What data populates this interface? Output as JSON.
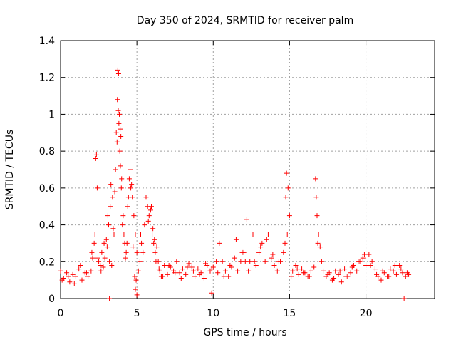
{
  "chart_data": {
    "type": "scatter",
    "title": "Day 350 of 2024, SRMTID for receiver palm",
    "xlabel": "GPS time / hours",
    "ylabel": "SRMTID / TECUs",
    "xlim": [
      0,
      24.5
    ],
    "ylim": [
      0,
      1.4
    ],
    "xticks": [
      0,
      5,
      10,
      15,
      20
    ],
    "xtick_labels": [
      "0",
      "5",
      "10",
      "15",
      "20"
    ],
    "yticks": [
      0,
      0.2,
      0.4,
      0.6,
      0.8,
      1.0,
      1.2,
      1.4
    ],
    "ytick_labels": [
      "0",
      "0.2",
      "0.4",
      "0.6",
      "0.8",
      "1",
      "1.2",
      "1.4"
    ],
    "grid": true,
    "marker": "+",
    "series": [
      {
        "name": "SRMTID",
        "color": "#ff0000",
        "x": [
          0.0,
          0.2,
          0.4,
          0.6,
          0.8,
          1.0,
          1.2,
          1.4,
          1.6,
          1.8,
          2.0,
          2.1,
          2.2,
          2.3,
          2.35,
          2.4,
          2.5,
          2.6,
          2.7,
          2.8,
          2.9,
          3.0,
          3.1,
          3.2,
          3.25,
          3.3,
          3.4,
          3.5,
          3.6,
          3.7,
          3.75,
          3.8,
          3.85,
          3.9,
          3.95,
          4.0,
          4.1,
          4.2,
          4.3,
          4.4,
          4.5,
          4.6,
          4.7,
          4.8,
          4.9,
          5.0,
          5.1,
          5.2,
          5.3,
          5.4,
          5.5,
          5.6,
          5.7,
          5.8,
          5.9,
          6.0,
          6.1,
          6.2,
          6.3,
          6.4,
          6.5,
          6.6,
          6.8,
          7.0,
          7.2,
          7.4,
          7.6,
          7.8,
          8.0,
          8.2,
          8.4,
          8.6,
          8.8,
          9.0,
          9.2,
          9.4,
          9.6,
          9.8,
          10.0,
          10.2,
          10.4,
          10.6,
          10.8,
          11.0,
          11.2,
          11.4,
          11.6,
          11.8,
          12.0,
          12.2,
          12.4,
          12.6,
          12.8,
          13.0,
          13.2,
          13.4,
          13.6,
          13.8,
          14.0,
          14.2,
          14.4,
          14.6,
          14.7,
          14.8,
          14.9,
          15.0,
          15.2,
          15.4,
          15.6,
          15.8,
          16.0,
          16.2,
          16.4,
          16.6,
          16.7,
          16.8,
          16.9,
          17.0,
          17.2,
          17.4,
          17.6,
          17.8,
          18.0,
          18.2,
          18.4,
          18.6,
          18.8,
          19.0,
          19.2,
          19.4,
          19.6,
          19.8,
          20.0,
          20.2,
          20.4,
          20.6,
          20.8,
          21.0,
          21.2,
          21.4,
          21.6,
          21.8,
          22.0,
          22.2,
          22.4,
          22.6,
          22.8,
          0.1,
          0.5,
          0.9,
          1.3,
          1.7,
          2.05,
          2.25,
          2.45,
          2.65,
          2.85,
          3.05,
          3.15,
          3.35,
          3.45,
          3.55,
          3.65,
          3.72,
          3.78,
          3.82,
          3.88,
          3.92,
          3.98,
          4.05,
          4.15,
          4.25,
          4.35,
          4.45,
          4.55,
          4.65,
          4.75,
          4.85,
          4.95,
          5.25,
          5.75,
          5.95,
          6.05,
          6.15,
          6.25,
          6.45,
          6.7,
          7.1,
          7.5,
          7.9,
          8.3,
          8.7,
          9.1,
          9.5,
          9.9,
          10.3,
          10.7,
          11.1,
          11.5,
          11.9,
          12.1,
          12.3,
          12.7,
          13.1,
          13.5,
          13.9,
          14.3,
          14.75,
          14.85,
          15.1,
          15.5,
          15.9,
          16.3,
          16.75,
          16.85,
          17.1,
          17.5,
          17.9,
          18.3,
          18.7,
          19.1,
          19.5,
          19.9,
          20.3,
          20.7,
          21.1,
          21.5,
          21.9,
          22.3,
          22.7,
          3.2,
          9.9,
          22.5,
          4.9,
          5.0
        ],
        "y": [
          0.15,
          0.11,
          0.14,
          0.09,
          0.13,
          0.12,
          0.16,
          0.1,
          0.14,
          0.12,
          0.15,
          0.22,
          0.3,
          0.76,
          0.78,
          0.6,
          0.2,
          0.18,
          0.25,
          0.17,
          0.22,
          0.32,
          0.45,
          0.2,
          0.5,
          0.62,
          0.55,
          0.35,
          0.7,
          0.85,
          1.24,
          1.22,
          1.0,
          0.92,
          0.88,
          0.65,
          0.45,
          0.3,
          0.25,
          0.5,
          0.65,
          0.6,
          0.55,
          0.45,
          0.35,
          0.25,
          0.15,
          0.2,
          0.3,
          0.25,
          0.4,
          0.55,
          0.5,
          0.45,
          0.48,
          0.35,
          0.3,
          0.25,
          0.28,
          0.2,
          0.15,
          0.12,
          0.18,
          0.13,
          0.17,
          0.15,
          0.2,
          0.14,
          0.16,
          0.13,
          0.19,
          0.17,
          0.12,
          0.16,
          0.14,
          0.11,
          0.18,
          0.15,
          0.17,
          0.2,
          0.3,
          0.2,
          0.15,
          0.12,
          0.17,
          0.22,
          0.15,
          0.2,
          0.25,
          0.43,
          0.2,
          0.35,
          0.18,
          0.25,
          0.3,
          0.2,
          0.35,
          0.22,
          0.18,
          0.15,
          0.2,
          0.25,
          0.3,
          0.68,
          0.6,
          0.45,
          0.15,
          0.18,
          0.13,
          0.16,
          0.14,
          0.12,
          0.15,
          0.17,
          0.65,
          0.45,
          0.35,
          0.28,
          0.15,
          0.12,
          0.14,
          0.1,
          0.15,
          0.13,
          0.09,
          0.16,
          0.12,
          0.14,
          0.18,
          0.15,
          0.2,
          0.22,
          0.18,
          0.24,
          0.2,
          0.16,
          0.12,
          0.1,
          0.14,
          0.12,
          0.16,
          0.15,
          0.13,
          0.18,
          0.14,
          0.12,
          0.13,
          0.1,
          0.12,
          0.08,
          0.18,
          0.14,
          0.25,
          0.35,
          0.22,
          0.15,
          0.3,
          0.28,
          0.4,
          0.18,
          0.38,
          0.58,
          0.9,
          1.08,
          1.02,
          0.95,
          0.8,
          0.72,
          0.6,
          0.4,
          0.35,
          0.22,
          0.3,
          0.55,
          0.7,
          0.62,
          0.28,
          0.12,
          0.1,
          0.35,
          0.42,
          0.5,
          0.38,
          0.32,
          0.2,
          0.16,
          0.12,
          0.18,
          0.14,
          0.11,
          0.17,
          0.15,
          0.13,
          0.19,
          0.16,
          0.14,
          0.12,
          0.18,
          0.32,
          0.25,
          0.2,
          0.15,
          0.2,
          0.28,
          0.32,
          0.24,
          0.2,
          0.55,
          0.35,
          0.12,
          0.16,
          0.14,
          0.12,
          0.55,
          0.3,
          0.2,
          0.13,
          0.11,
          0.15,
          0.12,
          0.17,
          0.2,
          0.24,
          0.18,
          0.13,
          0.15,
          0.12,
          0.18,
          0.16,
          0.14,
          0.0,
          0.03,
          0.0,
          0.05,
          0.02
        ]
      }
    ]
  }
}
